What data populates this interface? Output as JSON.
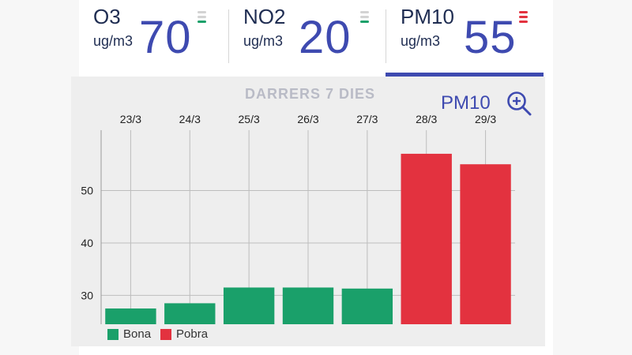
{
  "cards": [
    {
      "name": "O3",
      "unit": "ug/m3",
      "value": "70",
      "indicator": "green",
      "active": false
    },
    {
      "name": "NO2",
      "unit": "ug/m3",
      "value": "20",
      "indicator": "green",
      "active": false
    },
    {
      "name": "PM10",
      "unit": "ug/m3",
      "value": "55",
      "indicator": "red",
      "active": true
    }
  ],
  "panel": {
    "title": "DARRERS 7 DIES",
    "pollutant": "PM10",
    "zoom_icon": "zoom-in-icon"
  },
  "colors": {
    "good": "#1aa06a",
    "bad": "#e3323f",
    "accent": "#3e4ab0",
    "indicator_off": "#d3d3d3"
  },
  "legend": [
    {
      "label": "Bona",
      "color": "#1aa06a"
    },
    {
      "label": "Pobra",
      "color": "#e3323f"
    }
  ],
  "chart_data": {
    "type": "bar",
    "categories": [
      "23/3",
      "24/3",
      "25/3",
      "26/3",
      "27/3",
      "28/3",
      "29/3"
    ],
    "values": [
      27.5,
      28.5,
      31.5,
      31.5,
      31.3,
      57,
      55
    ],
    "quality": [
      "Bona",
      "Bona",
      "Bona",
      "Bona",
      "Bona",
      "Pobra",
      "Pobra"
    ],
    "ylim": [
      24.5,
      61.5
    ],
    "yticks": [
      30,
      40,
      50
    ],
    "grid": true,
    "legend_position": "bottom-left"
  }
}
